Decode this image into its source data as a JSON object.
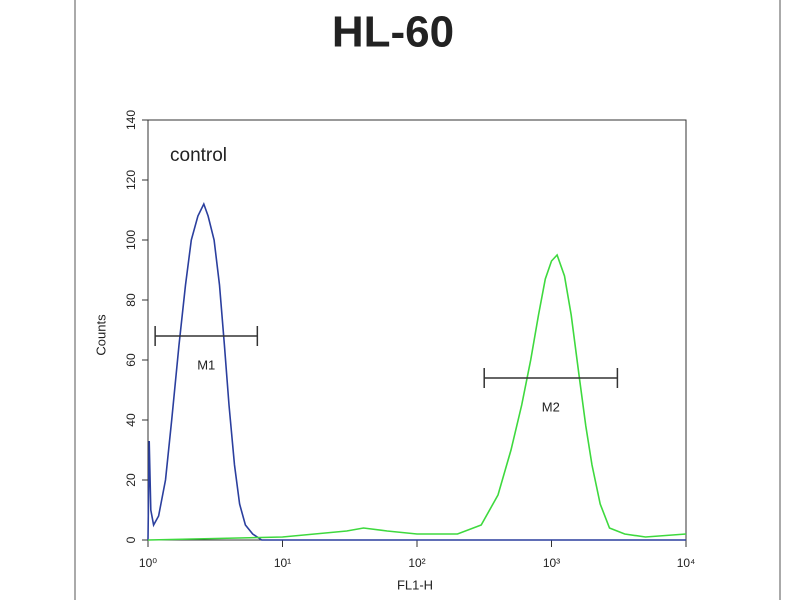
{
  "chart_data": {
    "type": "line",
    "title": "HL-60",
    "xlabel": "FL1-H",
    "ylabel": "Counts",
    "annotation": "control",
    "xscale": "log",
    "xlim": [
      1,
      10000
    ],
    "xticks": [
      {
        "value": 1,
        "label": "10⁰"
      },
      {
        "value": 10,
        "label": "10¹"
      },
      {
        "value": 100,
        "label": "10²"
      },
      {
        "value": 1000,
        "label": "10³"
      },
      {
        "value": 10000,
        "label": "10⁴"
      }
    ],
    "ylim": [
      0,
      140
    ],
    "yticks": [
      0,
      20,
      40,
      60,
      80,
      100,
      120,
      140
    ],
    "series": [
      {
        "color": "#2b3f9e",
        "x": [
          1.0,
          1.02,
          1.05,
          1.1,
          1.2,
          1.35,
          1.5,
          1.7,
          1.9,
          2.1,
          2.35,
          2.6,
          2.8,
          3.1,
          3.4,
          3.7,
          4.0,
          4.4,
          4.8,
          5.3,
          6.0,
          7.0,
          10000
        ],
        "values": [
          0,
          33,
          10,
          5,
          8,
          20,
          40,
          65,
          85,
          100,
          108,
          112,
          108,
          100,
          85,
          65,
          45,
          25,
          12,
          5,
          2,
          0,
          0
        ]
      },
      {
        "color": "#3ed93e",
        "x": [
          1,
          10,
          30,
          40,
          60,
          100,
          200,
          300,
          400,
          500,
          600,
          700,
          800,
          900,
          1000,
          1100,
          1250,
          1400,
          1600,
          1800,
          2000,
          2300,
          2700,
          3500,
          5000,
          10000
        ],
        "values": [
          0,
          1,
          3,
          4,
          3,
          2,
          2,
          5,
          15,
          30,
          45,
          60,
          75,
          87,
          93,
          95,
          88,
          75,
          55,
          38,
          25,
          12,
          4,
          2,
          1,
          2
        ]
      }
    ],
    "markers": [
      {
        "label": "M1",
        "x": [
          1.13,
          6.5
        ],
        "y": 68
      },
      {
        "label": "M2",
        "x": [
          316,
          3090
        ],
        "y": 54
      }
    ]
  }
}
